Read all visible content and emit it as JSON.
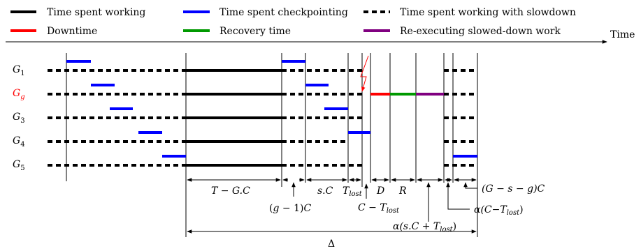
{
  "legend": {
    "items": [
      {
        "label": "Time spent working",
        "color": "#000000",
        "style": "solid"
      },
      {
        "label": "Time spent checkpointing",
        "color": "#0000ff",
        "style": "solid"
      },
      {
        "label": "Time spent working with slowdown",
        "color": "#000000",
        "style": "dashed"
      },
      {
        "label": "Downtime",
        "color": "#ff0000",
        "style": "solid"
      },
      {
        "label": "Recovery time",
        "color": "#009900",
        "style": "solid"
      },
      {
        "label": "Re-executing slowed-down work",
        "color": "#800080",
        "style": "solid"
      }
    ]
  },
  "axis": {
    "label": "Time"
  },
  "rows": [
    {
      "main": "G",
      "sub": "1",
      "color": "#000000"
    },
    {
      "main": "G",
      "sub": "g",
      "color": "#ff0000"
    },
    {
      "main": "G",
      "sub": "3",
      "color": "#000000"
    },
    {
      "main": "G",
      "sub": "4",
      "color": "#000000"
    },
    {
      "main": "G",
      "sub": "5",
      "color": "#000000"
    }
  ],
  "annotations": {
    "t_minus_gc": {
      "a": "T",
      "b": " − ",
      "c": "G.C"
    },
    "g_minus_1_c": {
      "a": "(",
      "b": "g",
      "c": " − 1)",
      "d": "C"
    },
    "s_c": {
      "a": "s.C"
    },
    "t_lost": {
      "a": "T",
      "sub": "lost"
    },
    "d": {
      "a": "D"
    },
    "r": {
      "a": "R"
    },
    "c_minus_tlost": {
      "a": "C",
      "b": " − ",
      "c": "T",
      "sub": "lost"
    },
    "alpha_sc_tlost": {
      "a": "α",
      "b": "(s.C",
      "c": " + ",
      "d": "T",
      "sub": "lost",
      "e": ")"
    },
    "alpha_c_tlost": {
      "a": "α",
      "b": "(C",
      "c": "−",
      "d": "T",
      "sub": "lost",
      "e": ")"
    },
    "g_s_g_c": {
      "a": "(G",
      "b": " − ",
      "c": "s",
      "d": " − ",
      "e": "g)C"
    },
    "delta": {
      "a": "Δ"
    }
  }
}
